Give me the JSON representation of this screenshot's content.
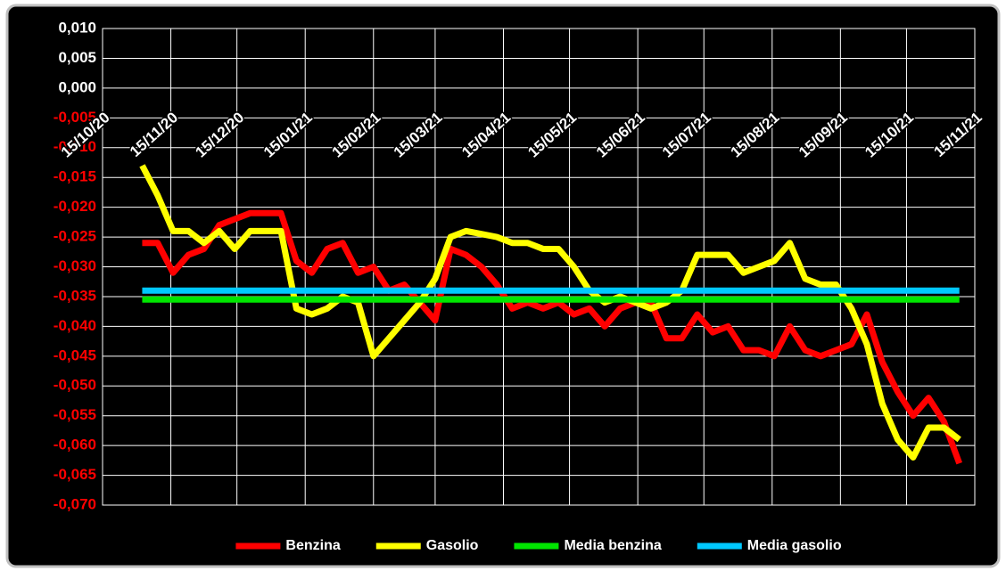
{
  "chart_data": {
    "type": "line",
    "x": [
      "2020-11-02",
      "2020-11-09",
      "2020-11-16",
      "2020-11-23",
      "2020-11-30",
      "2020-12-07",
      "2020-12-14",
      "2020-12-21",
      "2020-12-28",
      "2021-01-04",
      "2021-01-11",
      "2021-01-18",
      "2021-01-25",
      "2021-02-01",
      "2021-02-08",
      "2021-02-15",
      "2021-02-22",
      "2021-03-01",
      "2021-03-08",
      "2021-03-15",
      "2021-03-22",
      "2021-03-29",
      "2021-04-05",
      "2021-04-12",
      "2021-04-19",
      "2021-04-26",
      "2021-05-03",
      "2021-05-10",
      "2021-05-17",
      "2021-05-24",
      "2021-05-31",
      "2021-06-07",
      "2021-06-14",
      "2021-06-21",
      "2021-06-28",
      "2021-07-05",
      "2021-07-12",
      "2021-07-19",
      "2021-07-26",
      "2021-08-02",
      "2021-08-09",
      "2021-08-16",
      "2021-08-23",
      "2021-08-30",
      "2021-09-06",
      "2021-09-13",
      "2021-09-20",
      "2021-09-27",
      "2021-10-04",
      "2021-10-11",
      "2021-10-18",
      "2021-10-25",
      "2021-11-01",
      "2021-11-08"
    ],
    "xlim": [
      "2020-10-15",
      "2021-11-15"
    ],
    "xticks": [
      {
        "value": "2020-10-15",
        "label": "15/10/20"
      },
      {
        "value": "2020-11-15",
        "label": "15/11/20"
      },
      {
        "value": "2020-12-15",
        "label": "15/12/20"
      },
      {
        "value": "2021-01-15",
        "label": "15/01/21"
      },
      {
        "value": "2021-02-15",
        "label": "15/02/21"
      },
      {
        "value": "2021-03-15",
        "label": "15/03/21"
      },
      {
        "value": "2021-04-15",
        "label": "15/04/21"
      },
      {
        "value": "2021-05-15",
        "label": "15/05/21"
      },
      {
        "value": "2021-06-15",
        "label": "15/06/21"
      },
      {
        "value": "2021-07-15",
        "label": "15/07/21"
      },
      {
        "value": "2021-08-15",
        "label": "15/08/21"
      },
      {
        "value": "2021-09-15",
        "label": "15/09/21"
      },
      {
        "value": "2021-10-15",
        "label": "15/10/21"
      },
      {
        "value": "2021-11-15",
        "label": "15/11/21"
      }
    ],
    "ylim": [
      -0.07,
      0.01
    ],
    "yticks": [
      {
        "value": 0.01,
        "label": "0,010"
      },
      {
        "value": 0.005,
        "label": "0,005"
      },
      {
        "value": 0,
        "label": "0,000"
      },
      {
        "value": -0.005,
        "label": "-0,005"
      },
      {
        "value": -0.01,
        "label": "-0,010"
      },
      {
        "value": -0.015,
        "label": "-0,015"
      },
      {
        "value": -0.02,
        "label": "-0,020"
      },
      {
        "value": -0.025,
        "label": "-0,025"
      },
      {
        "value": -0.03,
        "label": "-0,030"
      },
      {
        "value": -0.035,
        "label": "-0,035"
      },
      {
        "value": -0.04,
        "label": "-0,040"
      },
      {
        "value": -0.045,
        "label": "-0,045"
      },
      {
        "value": -0.05,
        "label": "-0,050"
      },
      {
        "value": -0.055,
        "label": "-0,055"
      },
      {
        "value": -0.06,
        "label": "-0,060"
      },
      {
        "value": -0.065,
        "label": "-0,065"
      },
      {
        "value": -0.07,
        "label": "-0,070"
      }
    ],
    "grid": true,
    "legend": "bottom",
    "series": [
      {
        "name": "Benzina",
        "color": "#ff0000",
        "values": [
          -0.026,
          -0.026,
          -0.031,
          -0.028,
          -0.027,
          -0.023,
          -0.022,
          -0.021,
          -0.021,
          -0.021,
          -0.029,
          -0.031,
          -0.027,
          -0.026,
          -0.031,
          -0.03,
          -0.034,
          -0.033,
          -0.036,
          -0.039,
          -0.027,
          -0.028,
          -0.03,
          -0.033,
          -0.037,
          -0.036,
          -0.037,
          -0.036,
          -0.038,
          -0.037,
          -0.04,
          -0.037,
          -0.036,
          -0.036,
          -0.042,
          -0.042,
          -0.038,
          -0.041,
          -0.04,
          -0.044,
          -0.044,
          -0.045,
          -0.04,
          -0.044,
          -0.045,
          -0.044,
          -0.043,
          -0.038,
          -0.046,
          -0.051,
          -0.055,
          -0.052,
          -0.056,
          -0.063
        ]
      },
      {
        "name": "Gasolio",
        "color": "#ffff00",
        "values": [
          -0.013,
          -0.018,
          -0.024,
          -0.024,
          -0.026,
          -0.024,
          -0.027,
          -0.024,
          -0.024,
          -0.024,
          -0.037,
          -0.038,
          -0.037,
          -0.035,
          -0.036,
          -0.045,
          -0.042,
          -0.039,
          -0.036,
          -0.032,
          -0.025,
          -0.024,
          -0.0245,
          -0.025,
          -0.026,
          -0.026,
          -0.027,
          -0.027,
          -0.03,
          -0.034,
          -0.036,
          -0.035,
          -0.036,
          -0.037,
          -0.036,
          -0.034,
          -0.028,
          -0.028,
          -0.028,
          -0.031,
          -0.03,
          -0.029,
          -0.026,
          -0.032,
          -0.033,
          -0.033,
          -0.037,
          -0.043,
          -0.053,
          -0.059,
          -0.062,
          -0.057,
          -0.057,
          -0.059
        ]
      },
      {
        "name": "Media benzina",
        "color": "#00e600",
        "values": [
          -0.0355,
          -0.0355,
          -0.0355,
          -0.0355,
          -0.0355,
          -0.0355,
          -0.0355,
          -0.0355,
          -0.0355,
          -0.0355,
          -0.0355,
          -0.0355,
          -0.0355,
          -0.0355,
          -0.0355,
          -0.0355,
          -0.0355,
          -0.0355,
          -0.0355,
          -0.0355,
          -0.0355,
          -0.0355,
          -0.0355,
          -0.0355,
          -0.0355,
          -0.0355,
          -0.0355,
          -0.0355,
          -0.0355,
          -0.0355,
          -0.0355,
          -0.0355,
          -0.0355,
          -0.0355,
          -0.0355,
          -0.0355,
          -0.0355,
          -0.0355,
          -0.0355,
          -0.0355,
          -0.0355,
          -0.0355,
          -0.0355,
          -0.0355,
          -0.0355,
          -0.0355,
          -0.0355,
          -0.0355,
          -0.0355,
          -0.0355,
          -0.0355,
          -0.0355,
          -0.0355,
          -0.0355
        ]
      },
      {
        "name": "Media gasolio",
        "color": "#00c8ff",
        "values": [
          -0.034,
          -0.034,
          -0.034,
          -0.034,
          -0.034,
          -0.034,
          -0.034,
          -0.034,
          -0.034,
          -0.034,
          -0.034,
          -0.034,
          -0.034,
          -0.034,
          -0.034,
          -0.034,
          -0.034,
          -0.034,
          -0.034,
          -0.034,
          -0.034,
          -0.034,
          -0.034,
          -0.034,
          -0.034,
          -0.034,
          -0.034,
          -0.034,
          -0.034,
          -0.034,
          -0.034,
          -0.034,
          -0.034,
          -0.034,
          -0.034,
          -0.034,
          -0.034,
          -0.034,
          -0.034,
          -0.034,
          -0.034,
          -0.034,
          -0.034,
          -0.034,
          -0.034,
          -0.034,
          -0.034,
          -0.034,
          -0.034,
          -0.034,
          -0.034,
          -0.034,
          -0.034,
          -0.034
        ]
      }
    ]
  }
}
